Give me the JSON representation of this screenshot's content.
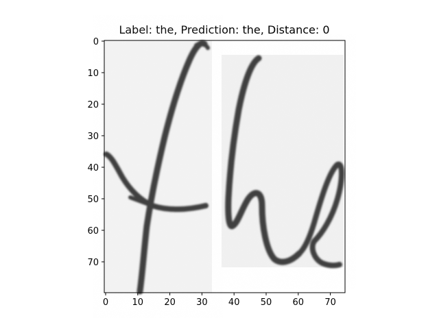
{
  "figure": {
    "title": "Label: the, Prediction: the, Distance: 0",
    "image_description_label": "the",
    "x_ticks": [
      "0",
      "10",
      "20",
      "30",
      "40",
      "50",
      "60",
      "70"
    ],
    "y_ticks": [
      "0",
      "10",
      "20",
      "30",
      "40",
      "50",
      "60",
      "70"
    ],
    "image_range": {
      "x": [
        0,
        75
      ],
      "y": [
        0,
        80
      ]
    },
    "colors": {
      "ink": "#3f3f3f",
      "paper": "#ededed",
      "background": "#ffffff",
      "axis": "#000000"
    }
  }
}
